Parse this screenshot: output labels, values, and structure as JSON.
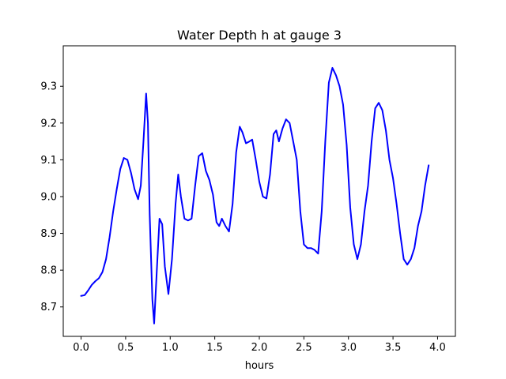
{
  "chart_data": {
    "type": "line",
    "title": "Water Depth h at gauge 3",
    "xlabel": "hours",
    "ylabel": "",
    "xlim": [
      -0.2,
      4.2
    ],
    "ylim": [
      8.62,
      9.41
    ],
    "xticks": [
      0.0,
      0.5,
      1.0,
      1.5,
      2.0,
      2.5,
      3.0,
      3.5,
      4.0
    ],
    "xtick_labels": [
      "0.0",
      "0.5",
      "1.0",
      "1.5",
      "2.0",
      "2.5",
      "3.0",
      "3.5",
      "4.0"
    ],
    "yticks": [
      8.7,
      8.8,
      8.9,
      9.0,
      9.1,
      9.2,
      9.3
    ],
    "ytick_labels": [
      "8.7",
      "8.8",
      "8.9",
      "9.0",
      "9.1",
      "9.2",
      "9.3"
    ],
    "grid": false,
    "legend": "none",
    "series": [
      {
        "color": "#0000ff",
        "points": [
          [
            0.0,
            8.73
          ],
          [
            0.04,
            8.732
          ],
          [
            0.08,
            8.745
          ],
          [
            0.12,
            8.76
          ],
          [
            0.16,
            8.77
          ],
          [
            0.2,
            8.778
          ],
          [
            0.24,
            8.795
          ],
          [
            0.28,
            8.83
          ],
          [
            0.32,
            8.89
          ],
          [
            0.36,
            8.96
          ],
          [
            0.4,
            9.02
          ],
          [
            0.44,
            9.075
          ],
          [
            0.48,
            9.105
          ],
          [
            0.52,
            9.1
          ],
          [
            0.56,
            9.065
          ],
          [
            0.6,
            9.02
          ],
          [
            0.64,
            8.993
          ],
          [
            0.67,
            9.03
          ],
          [
            0.7,
            9.15
          ],
          [
            0.73,
            9.28
          ],
          [
            0.75,
            9.2
          ],
          [
            0.77,
            8.95
          ],
          [
            0.8,
            8.72
          ],
          [
            0.82,
            8.655
          ],
          [
            0.85,
            8.8
          ],
          [
            0.88,
            8.94
          ],
          [
            0.91,
            8.925
          ],
          [
            0.94,
            8.81
          ],
          [
            0.98,
            8.735
          ],
          [
            1.02,
            8.83
          ],
          [
            1.06,
            8.98
          ],
          [
            1.09,
            9.06
          ],
          [
            1.12,
            9.0
          ],
          [
            1.16,
            8.94
          ],
          [
            1.2,
            8.935
          ],
          [
            1.24,
            8.94
          ],
          [
            1.28,
            9.03
          ],
          [
            1.32,
            9.11
          ],
          [
            1.36,
            9.118
          ],
          [
            1.4,
            9.07
          ],
          [
            1.44,
            9.045
          ],
          [
            1.48,
            9.005
          ],
          [
            1.52,
            8.93
          ],
          [
            1.55,
            8.92
          ],
          [
            1.58,
            8.94
          ],
          [
            1.62,
            8.92
          ],
          [
            1.66,
            8.905
          ],
          [
            1.7,
            8.98
          ],
          [
            1.74,
            9.12
          ],
          [
            1.78,
            9.19
          ],
          [
            1.81,
            9.175
          ],
          [
            1.85,
            9.145
          ],
          [
            1.89,
            9.15
          ],
          [
            1.92,
            9.155
          ],
          [
            1.96,
            9.1
          ],
          [
            2.0,
            9.04
          ],
          [
            2.04,
            9.0
          ],
          [
            2.08,
            8.995
          ],
          [
            2.12,
            9.06
          ],
          [
            2.16,
            9.17
          ],
          [
            2.19,
            9.18
          ],
          [
            2.22,
            9.15
          ],
          [
            2.26,
            9.185
          ],
          [
            2.3,
            9.21
          ],
          [
            2.34,
            9.2
          ],
          [
            2.38,
            9.15
          ],
          [
            2.42,
            9.1
          ],
          [
            2.46,
            8.96
          ],
          [
            2.5,
            8.87
          ],
          [
            2.54,
            8.86
          ],
          [
            2.58,
            8.86
          ],
          [
            2.62,
            8.855
          ],
          [
            2.66,
            8.845
          ],
          [
            2.7,
            8.96
          ],
          [
            2.74,
            9.15
          ],
          [
            2.78,
            9.31
          ],
          [
            2.82,
            9.35
          ],
          [
            2.86,
            9.33
          ],
          [
            2.9,
            9.3
          ],
          [
            2.94,
            9.25
          ],
          [
            2.98,
            9.14
          ],
          [
            3.02,
            8.97
          ],
          [
            3.06,
            8.87
          ],
          [
            3.1,
            8.83
          ],
          [
            3.14,
            8.87
          ],
          [
            3.18,
            8.96
          ],
          [
            3.22,
            9.03
          ],
          [
            3.26,
            9.15
          ],
          [
            3.3,
            9.24
          ],
          [
            3.34,
            9.255
          ],
          [
            3.38,
            9.235
          ],
          [
            3.42,
            9.18
          ],
          [
            3.46,
            9.1
          ],
          [
            3.5,
            9.05
          ],
          [
            3.54,
            8.98
          ],
          [
            3.58,
            8.9
          ],
          [
            3.62,
            8.83
          ],
          [
            3.66,
            8.815
          ],
          [
            3.7,
            8.83
          ],
          [
            3.74,
            8.86
          ],
          [
            3.78,
            8.92
          ],
          [
            3.82,
            8.96
          ],
          [
            3.86,
            9.03
          ],
          [
            3.9,
            9.085
          ]
        ]
      }
    ]
  }
}
